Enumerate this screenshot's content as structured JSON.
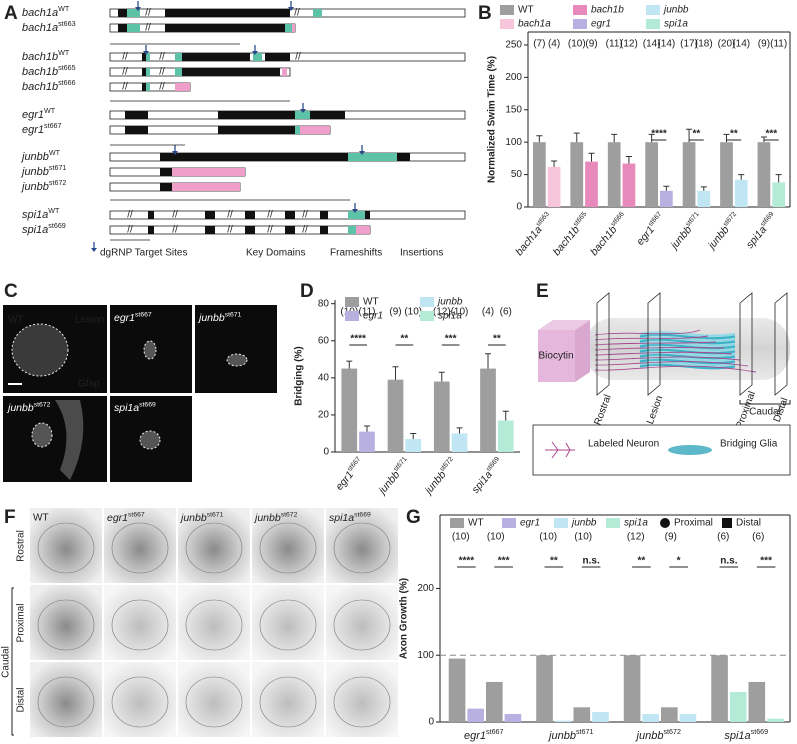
{
  "panel_labels": [
    "A",
    "B",
    "C",
    "D",
    "E",
    "F",
    "G"
  ],
  "panel_a": {
    "rows": [
      {
        "gene": "bach1a",
        "allele": "WT"
      },
      {
        "gene": "bach1a",
        "allele": "st663"
      },
      {
        "gene": "bach1b",
        "allele": "WT"
      },
      {
        "gene": "bach1b",
        "allele": "st665"
      },
      {
        "gene": "bach1b",
        "allele": "st666"
      },
      {
        "gene": "egr1",
        "allele": "WT"
      },
      {
        "gene": "egr1",
        "allele": "st667"
      },
      {
        "gene": "junbb",
        "allele": "WT"
      },
      {
        "gene": "junbb",
        "allele": "st671"
      },
      {
        "gene": "junbb",
        "allele": "st672"
      },
      {
        "gene": "spi1a",
        "allele": "WT"
      },
      {
        "gene": "spi1a",
        "allele": "st669"
      }
    ],
    "legend": [
      "dgRNP Target Sites",
      "Key Domains",
      "Frameshifts",
      "Insertions"
    ]
  },
  "panel_c": {
    "wt": "WT",
    "lesion": "Lesion",
    "marker": "Gfap",
    "mutants": [
      {
        "gene": "egr1",
        "allele": "st667"
      },
      {
        "gene": "junbb",
        "allele": "st671"
      },
      {
        "gene": "junbb",
        "allele": "st672"
      },
      {
        "gene": "spi1a",
        "allele": "st669"
      }
    ]
  },
  "panel_e": {
    "tracer": "Biocytin",
    "planes": [
      "Rostral",
      "Lesion",
      "Proximal",
      "Distal"
    ],
    "region": "Caudal",
    "legend": [
      "Labeled Neuron",
      "Bridging Glia"
    ]
  },
  "panel_f": {
    "wt": "WT",
    "mutants": [
      {
        "gene": "egr1",
        "allele": "st667"
      },
      {
        "gene": "junbb",
        "allele": "st671"
      },
      {
        "gene": "junbb",
        "allele": "st672"
      },
      {
        "gene": "spi1a",
        "allele": "st669"
      }
    ],
    "rows": [
      "Rostral",
      "Proximal",
      "Distal"
    ],
    "region": "Caudal"
  },
  "chart_data": [
    {
      "type": "bar",
      "y_label": "Normalized Swim Time (%)",
      "categories": [
        {
          "gene": "bach1a",
          "allele": "st663"
        },
        {
          "gene": "bach1b",
          "allele": "st665"
        },
        {
          "gene": "bach1b",
          "allele": "st666"
        },
        {
          "gene": "egr1",
          "allele": "st667"
        },
        {
          "gene": "junbb",
          "allele": "st671"
        },
        {
          "gene": "junbb",
          "allele": "st672"
        },
        {
          "gene": "spi1a",
          "allele": "st669"
        }
      ],
      "ylim": [
        0,
        270
      ],
      "yticks": [
        0,
        50,
        100,
        150,
        200,
        250
      ],
      "series": [
        {
          "name": "WT",
          "color": "#9e9e9e",
          "text_color": "#222222",
          "values": [
            100,
            100,
            100,
            100,
            100,
            100,
            100
          ],
          "errors": [
            10,
            14,
            12,
            12,
            20,
            12,
            8
          ],
          "n_labels": [
            "(7)",
            "(10)",
            "(11)",
            "(14)",
            "(17)",
            "(20)",
            "(9)"
          ]
        },
        {
          "name": "bach1a",
          "color": "#f7c6da",
          "text_color": "#e27aa8",
          "values": [
            62,
            null,
            null,
            null,
            null,
            null,
            null
          ],
          "errors": [
            9,
            null,
            null,
            null,
            null,
            null,
            null
          ],
          "n_labels": [
            "(4)",
            null,
            null,
            null,
            null,
            null,
            null
          ]
        },
        {
          "name": "bach1b",
          "color": "#e889bb",
          "text_color": "#c9458c",
          "values": [
            null,
            70,
            67,
            null,
            null,
            null,
            null
          ],
          "errors": [
            null,
            13,
            11,
            null,
            null,
            null,
            null
          ],
          "n_labels": [
            null,
            "(9)",
            "(12)",
            null,
            null,
            null,
            null
          ]
        },
        {
          "name": "egr1",
          "color": "#b8b0e0",
          "text_color": "#6a5bb5",
          "values": [
            null,
            null,
            null,
            25,
            null,
            null,
            null
          ],
          "errors": [
            null,
            null,
            null,
            7,
            null,
            null,
            null
          ],
          "n_labels": [
            null,
            null,
            null,
            "(14)",
            null,
            null,
            null
          ]
        },
        {
          "name": "junbb",
          "color": "#bfe6f2",
          "text_color": "#2a8a8f",
          "values": [
            null,
            null,
            null,
            null,
            25,
            42,
            null
          ],
          "errors": [
            null,
            null,
            null,
            null,
            6,
            8,
            null
          ],
          "n_labels": [
            null,
            null,
            null,
            null,
            "(18)",
            "(14)",
            null
          ]
        },
        {
          "name": "spi1a",
          "color": "#b4ebd6",
          "text_color": "#3aa77e",
          "values": [
            null,
            null,
            null,
            null,
            null,
            null,
            38
          ],
          "errors": [
            null,
            null,
            null,
            null,
            null,
            null,
            12
          ],
          "n_labels": [
            null,
            null,
            null,
            null,
            null,
            null,
            "(11)"
          ]
        }
      ],
      "significance": [
        null,
        null,
        null,
        "****",
        "**",
        "**",
        "***"
      ]
    },
    {
      "type": "bar",
      "y_label": "Bridging (%)",
      "categories": [
        {
          "gene": "egr1",
          "allele": "st667"
        },
        {
          "gene": "junbb",
          "allele": "st671"
        },
        {
          "gene": "junbb",
          "allele": "st672"
        },
        {
          "gene": "spi1a",
          "allele": "st669"
        }
      ],
      "ylim": [
        0,
        82
      ],
      "yticks": [
        0,
        20,
        40,
        60,
        80
      ],
      "series": [
        {
          "name": "WT",
          "color": "#9e9e9e",
          "text_color": "#222222",
          "values": [
            45,
            39,
            38,
            45
          ],
          "errors": [
            4,
            7,
            5,
            8
          ],
          "n_labels": [
            "(10)",
            "(9)",
            "(12)",
            "(4)"
          ]
        },
        {
          "name": "egr1",
          "color": "#b8b0e0",
          "text_color": "#6a5bb5",
          "values": [
            11,
            null,
            null,
            null
          ],
          "errors": [
            3,
            null,
            null,
            null
          ],
          "n_labels": [
            "(11)",
            null,
            null,
            null
          ]
        },
        {
          "name": "junbb",
          "color": "#bfe6f2",
          "text_color": "#2a8a8f",
          "values": [
            null,
            7,
            10,
            null
          ],
          "errors": [
            null,
            3,
            3,
            null
          ],
          "n_labels": [
            null,
            "(10)",
            "(10)",
            null
          ]
        },
        {
          "name": "spi1a",
          "color": "#b4ebd6",
          "text_color": "#3aa77e",
          "values": [
            null,
            null,
            null,
            17
          ],
          "errors": [
            null,
            null,
            null,
            5
          ],
          "n_labels": [
            null,
            null,
            null,
            "(6)"
          ]
        }
      ],
      "significance": [
        "****",
        "**",
        "***",
        "**"
      ]
    },
    {
      "type": "bar",
      "y_label": "Axon Growth (%)",
      "categories": [
        {
          "gene": "egr1",
          "allele": "st667"
        },
        {
          "gene": "junbb",
          "allele": "st671"
        },
        {
          "gene": "junbb",
          "allele": "st672"
        },
        {
          "gene": "spi1a",
          "allele": "st669"
        }
      ],
      "ylim": [
        0,
        310
      ],
      "yticks": [
        0,
        100,
        200
      ],
      "reference_line": 100,
      "markers": [
        "Proximal",
        "Distal"
      ],
      "series": [
        {
          "name": "WT",
          "color": "#9e9e9e",
          "text_color": "#222222",
          "proximal": [
            95,
            100,
            100,
            100
          ],
          "distal": [
            60,
            22,
            22,
            60
          ],
          "n_labels": [
            "(10)",
            "(10)",
            "(12)",
            "(6)"
          ]
        },
        {
          "name": "egr1",
          "color": "#b8b0e0",
          "text_color": "#6a5bb5",
          "proximal": [
            20,
            null,
            null,
            null
          ],
          "distal": [
            12,
            null,
            null,
            null
          ],
          "n_labels": [
            "(10)",
            null,
            null,
            null
          ]
        },
        {
          "name": "junbb",
          "color": "#bfe6f2",
          "text_color": "#2a8a8f",
          "proximal": [
            null,
            2,
            12,
            null
          ],
          "distal": [
            null,
            15,
            12,
            null
          ],
          "n_labels": [
            null,
            "(10)",
            "(9)",
            null
          ]
        },
        {
          "name": "spi1a",
          "color": "#b4ebd6",
          "text_color": "#3aa77e",
          "proximal": [
            null,
            null,
            null,
            45
          ],
          "distal": [
            null,
            null,
            null,
            5
          ],
          "n_labels": [
            null,
            null,
            null,
            "(6)"
          ]
        }
      ],
      "significance": [
        [
          "****",
          "***"
        ],
        [
          "**",
          "n.s."
        ],
        [
          "**",
          "*"
        ],
        [
          "n.s.",
          "***"
        ]
      ]
    }
  ]
}
